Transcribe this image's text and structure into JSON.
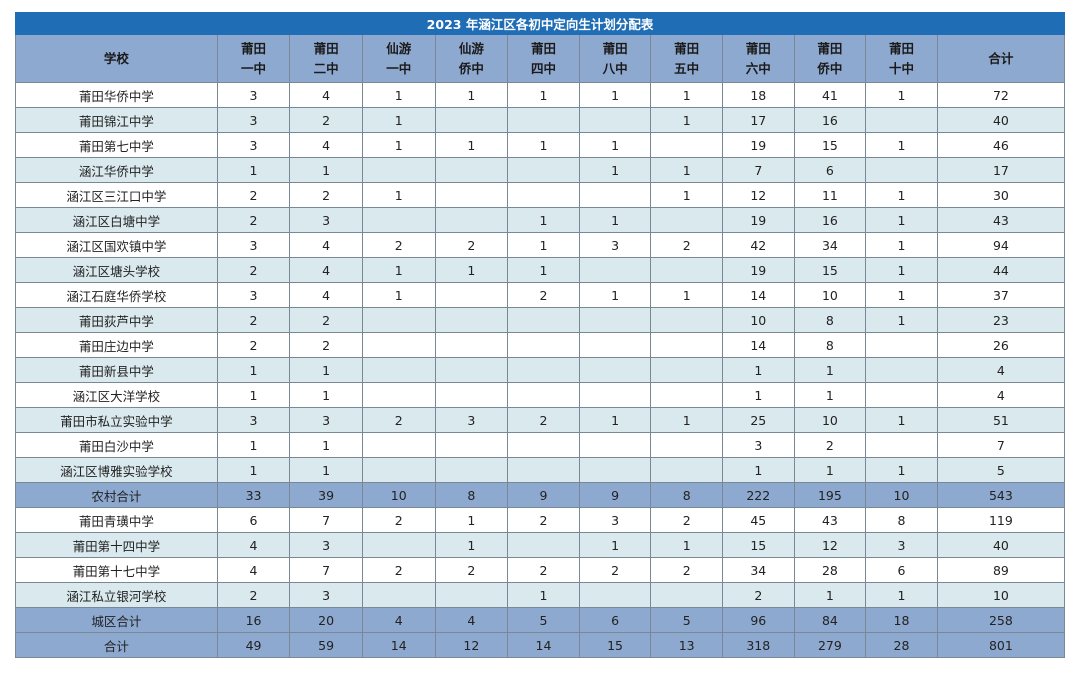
{
  "title": "2023 年涵江区各初中定向生计划分配表",
  "headers": [
    [
      "学校"
    ],
    [
      "莆田",
      "一中"
    ],
    [
      "莆田",
      "二中"
    ],
    [
      "仙游",
      "一中"
    ],
    [
      "仙游",
      "侨中"
    ],
    [
      "莆田",
      "四中"
    ],
    [
      "莆田",
      "八中"
    ],
    [
      "莆田",
      "五中"
    ],
    [
      "莆田",
      "六中"
    ],
    [
      "莆田",
      "侨中"
    ],
    [
      "莆田",
      "十中"
    ],
    [
      "合计"
    ]
  ],
  "rows": [
    {
      "kind": "data",
      "cells": [
        "莆田华侨中学",
        "3",
        "4",
        "1",
        "1",
        "1",
        "1",
        "1",
        "18",
        "41",
        "1",
        "72"
      ]
    },
    {
      "kind": "data",
      "cells": [
        "莆田锦江中学",
        "3",
        "2",
        "1",
        "",
        "",
        "",
        "1",
        "17",
        "16",
        "",
        "40"
      ]
    },
    {
      "kind": "data",
      "cells": [
        "莆田第七中学",
        "3",
        "4",
        "1",
        "1",
        "1",
        "1",
        "",
        "19",
        "15",
        "1",
        "46"
      ]
    },
    {
      "kind": "data",
      "cells": [
        "涵江华侨中学",
        "1",
        "1",
        "",
        "",
        "",
        "1",
        "1",
        "7",
        "6",
        "",
        "17"
      ]
    },
    {
      "kind": "data",
      "cells": [
        "涵江区三江口中学",
        "2",
        "2",
        "1",
        "",
        "",
        "",
        "1",
        "12",
        "11",
        "1",
        "30"
      ]
    },
    {
      "kind": "data",
      "cells": [
        "涵江区白塘中学",
        "2",
        "3",
        "",
        "",
        "1",
        "1",
        "",
        "19",
        "16",
        "1",
        "43"
      ]
    },
    {
      "kind": "data",
      "cells": [
        "涵江区国欢镇中学",
        "3",
        "4",
        "2",
        "2",
        "1",
        "3",
        "2",
        "42",
        "34",
        "1",
        "94"
      ]
    },
    {
      "kind": "data",
      "cells": [
        "涵江区塘头学校",
        "2",
        "4",
        "1",
        "1",
        "1",
        "",
        "",
        "19",
        "15",
        "1",
        "44"
      ]
    },
    {
      "kind": "data",
      "cells": [
        "涵江石庭华侨学校",
        "3",
        "4",
        "1",
        "",
        "2",
        "1",
        "1",
        "14",
        "10",
        "1",
        "37"
      ]
    },
    {
      "kind": "data",
      "cells": [
        "莆田荻芦中学",
        "2",
        "2",
        "",
        "",
        "",
        "",
        "",
        "10",
        "8",
        "1",
        "23"
      ]
    },
    {
      "kind": "data",
      "cells": [
        "莆田庄边中学",
        "2",
        "2",
        "",
        "",
        "",
        "",
        "",
        "14",
        "8",
        "",
        "26"
      ]
    },
    {
      "kind": "data",
      "cells": [
        "莆田新县中学",
        "1",
        "1",
        "",
        "",
        "",
        "",
        "",
        "1",
        "1",
        "",
        "4"
      ]
    },
    {
      "kind": "data",
      "cells": [
        "涵江区大洋学校",
        "1",
        "1",
        "",
        "",
        "",
        "",
        "",
        "1",
        "1",
        "",
        "4"
      ]
    },
    {
      "kind": "data",
      "cells": [
        "莆田市私立实验中学",
        "3",
        "3",
        "2",
        "3",
        "2",
        "1",
        "1",
        "25",
        "10",
        "1",
        "51"
      ]
    },
    {
      "kind": "data",
      "cells": [
        "莆田白沙中学",
        "1",
        "1",
        "",
        "",
        "",
        "",
        "",
        "3",
        "2",
        "",
        "7"
      ]
    },
    {
      "kind": "data",
      "cells": [
        "涵江区博雅实验学校",
        "1",
        "1",
        "",
        "",
        "",
        "",
        "",
        "1",
        "1",
        "1",
        "5"
      ]
    },
    {
      "kind": "sub",
      "cells": [
        "农村合计",
        "33",
        "39",
        "10",
        "8",
        "9",
        "9",
        "8",
        "222",
        "195",
        "10",
        "543"
      ]
    },
    {
      "kind": "data",
      "cells": [
        "莆田青璜中学",
        "6",
        "7",
        "2",
        "1",
        "2",
        "3",
        "2",
        "45",
        "43",
        "8",
        "119"
      ]
    },
    {
      "kind": "data",
      "cells": [
        "莆田第十四中学",
        "4",
        "3",
        "",
        "1",
        "",
        "1",
        "1",
        "15",
        "12",
        "3",
        "40"
      ]
    },
    {
      "kind": "data",
      "cells": [
        "莆田第十七中学",
        "4",
        "7",
        "2",
        "2",
        "2",
        "2",
        "2",
        "34",
        "28",
        "6",
        "89"
      ]
    },
    {
      "kind": "data",
      "cells": [
        "涵江私立银河学校",
        "2",
        "3",
        "",
        "",
        "1",
        "",
        "",
        "2",
        "1",
        "1",
        "10"
      ]
    },
    {
      "kind": "sub",
      "cells": [
        "城区合计",
        "16",
        "20",
        "4",
        "4",
        "5",
        "6",
        "5",
        "96",
        "84",
        "18",
        "258"
      ]
    },
    {
      "kind": "total",
      "cells": [
        "合计",
        "49",
        "59",
        "14",
        "12",
        "14",
        "15",
        "13",
        "318",
        "279",
        "28",
        "801"
      ]
    }
  ]
}
